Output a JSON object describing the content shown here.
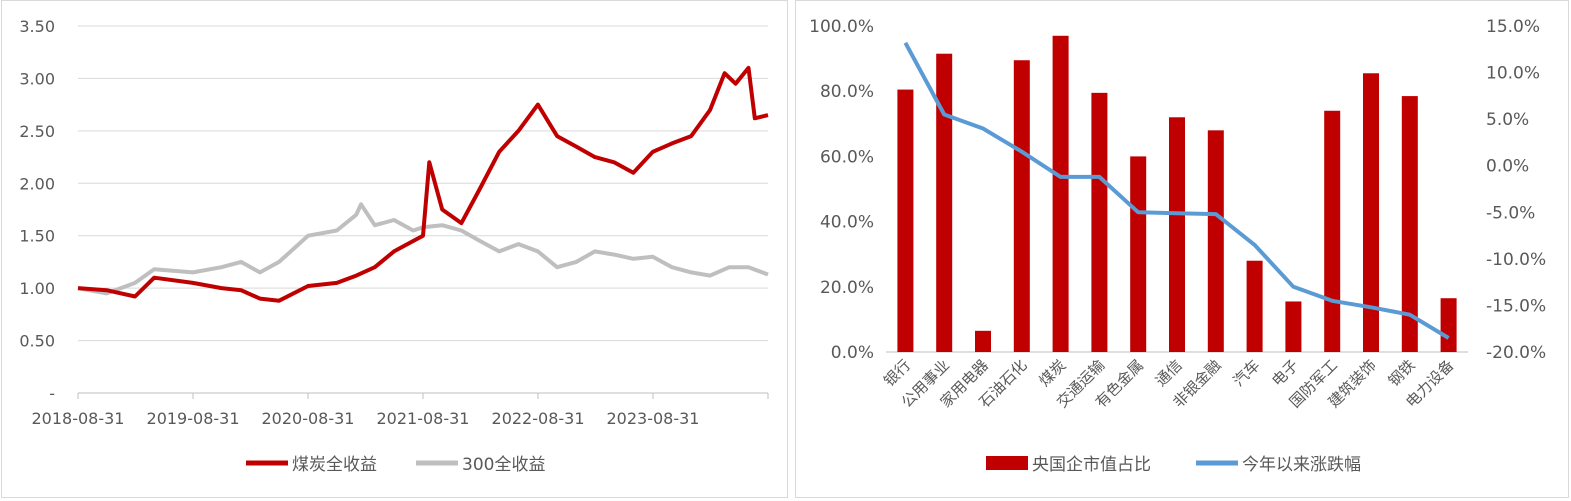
{
  "chart_data": [
    {
      "type": "line",
      "ylim": [
        0,
        3.5
      ],
      "y_ticks": [
        "-",
        "0.50",
        "1.00",
        "1.50",
        "2.00",
        "2.50",
        "3.00",
        "3.50"
      ],
      "y_tick_values": [
        0,
        0.5,
        1.0,
        1.5,
        2.0,
        2.5,
        3.0,
        3.5
      ],
      "x_tick_labels": [
        "2018-08-31",
        "2019-08-31",
        "2020-08-31",
        "2021-08-31",
        "2022-08-31",
        "2023-08-31"
      ],
      "x_tick_fractions": [
        0,
        0.1667,
        0.3333,
        0.5,
        0.6667,
        0.8333
      ],
      "grid": "horizontal",
      "legend_position": "bottom",
      "series": [
        {
          "name": "煤炭全收益",
          "color": "#C00000",
          "x": [
            "2018-08-31",
            "2018-11-30",
            "2019-02-28",
            "2019-04-30",
            "2019-08-31",
            "2019-11-30",
            "2020-01-31",
            "2020-03-31",
            "2020-05-31",
            "2020-08-31",
            "2020-11-30",
            "2021-01-31",
            "2021-03-31",
            "2021-05-31",
            "2021-07-31",
            "2021-08-31",
            "2021-09-20",
            "2021-10-31",
            "2021-12-31",
            "2022-02-28",
            "2022-04-30",
            "2022-06-30",
            "2022-08-31",
            "2022-10-31",
            "2022-12-31",
            "2023-02-28",
            "2023-04-30",
            "2023-06-30",
            "2023-08-31",
            "2023-10-31",
            "2023-12-31",
            "2024-02-29",
            "2024-04-15",
            "2024-05-20",
            "2024-06-30",
            "2024-07-20",
            "2024-08-31"
          ],
          "y": [
            1.0,
            0.98,
            0.92,
            1.1,
            1.05,
            1.0,
            0.98,
            0.9,
            0.88,
            1.02,
            1.05,
            1.12,
            1.2,
            1.35,
            1.45,
            1.5,
            2.2,
            1.75,
            1.62,
            1.95,
            2.3,
            2.5,
            2.75,
            2.45,
            2.35,
            2.25,
            2.2,
            2.1,
            2.3,
            2.38,
            2.45,
            2.7,
            3.05,
            2.95,
            3.1,
            2.62,
            2.65
          ]
        },
        {
          "name": "300全收益",
          "color": "#BFBFBF",
          "x": [
            "2018-08-31",
            "2018-11-30",
            "2019-02-28",
            "2019-04-30",
            "2019-08-31",
            "2019-11-30",
            "2020-01-31",
            "2020-03-31",
            "2020-05-31",
            "2020-08-31",
            "2020-11-30",
            "2021-01-31",
            "2021-02-15",
            "2021-03-31",
            "2021-05-31",
            "2021-07-31",
            "2021-08-31",
            "2021-10-31",
            "2021-12-31",
            "2022-02-28",
            "2022-04-30",
            "2022-06-30",
            "2022-08-31",
            "2022-10-31",
            "2022-12-31",
            "2023-02-28",
            "2023-04-30",
            "2023-06-30",
            "2023-08-31",
            "2023-10-31",
            "2023-12-31",
            "2024-02-29",
            "2024-04-30",
            "2024-06-30",
            "2024-08-31"
          ],
          "y": [
            1.0,
            0.95,
            1.05,
            1.18,
            1.15,
            1.2,
            1.25,
            1.15,
            1.25,
            1.5,
            1.55,
            1.7,
            1.8,
            1.6,
            1.65,
            1.55,
            1.58,
            1.6,
            1.55,
            1.45,
            1.35,
            1.42,
            1.35,
            1.2,
            1.25,
            1.35,
            1.32,
            1.28,
            1.3,
            1.2,
            1.15,
            1.12,
            1.2,
            1.2,
            1.13
          ]
        }
      ]
    },
    {
      "type": "bar+line",
      "categories": [
        "银行",
        "公用事业",
        "家用电器",
        "石油石化",
        "煤炭",
        "交通运输",
        "有色金属",
        "通信",
        "非银金融",
        "汽车",
        "电子",
        "国防军工",
        "建筑装饰",
        "钢铁",
        "电力设备"
      ],
      "y_left": {
        "ylim": [
          0,
          100
        ],
        "ticks": [
          "0.0%",
          "20.0%",
          "40.0%",
          "60.0%",
          "80.0%",
          "100.0%"
        ],
        "tick_values": [
          0,
          20,
          40,
          60,
          80,
          100
        ]
      },
      "y_right": {
        "ylim": [
          -20,
          15
        ],
        "ticks": [
          "-20.0%",
          "-15.0%",
          "-10.0%",
          "-5.0%",
          "0.0%",
          "5.0%",
          "10.0%",
          "15.0%"
        ],
        "tick_values": [
          -20,
          -15,
          -10,
          -5,
          0,
          5,
          10,
          15
        ]
      },
      "legend_position": "bottom",
      "series": [
        {
          "name": "央国企市值占比",
          "type": "bar",
          "axis": "left",
          "color": "#C00000",
          "values": [
            80.5,
            91.5,
            6.5,
            89.5,
            97.0,
            79.5,
            60.0,
            72.0,
            68.0,
            28.0,
            15.5,
            74.0,
            85.5,
            78.5,
            16.5
          ]
        },
        {
          "name": "今年以来涨跌幅",
          "type": "line",
          "axis": "right",
          "color": "#5B9BD5",
          "values": [
            13.2,
            5.5,
            4.0,
            1.5,
            -1.2,
            -1.2,
            -5.0,
            -5.1,
            -5.2,
            -8.5,
            -13.0,
            -14.5,
            -15.2,
            -16.0,
            -18.5
          ]
        }
      ]
    }
  ]
}
